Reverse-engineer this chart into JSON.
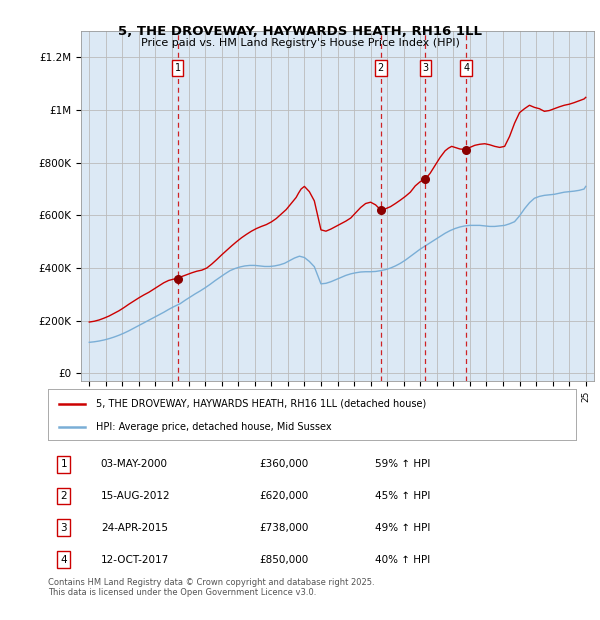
{
  "title": "5, THE DROVEWAY, HAYWARDS HEATH, RH16 1LL",
  "subtitle": "Price paid vs. HM Land Registry's House Price Index (HPI)",
  "red_label": "5, THE DROVEWAY, HAYWARDS HEATH, RH16 1LL (detached house)",
  "blue_label": "HPI: Average price, detached house, Mid Sussex",
  "transactions": [
    {
      "num": 1,
      "date": "03-MAY-2000",
      "price": 360000,
      "pct": "59%",
      "date_x": 2000.34
    },
    {
      "num": 2,
      "date": "15-AUG-2012",
      "price": 620000,
      "pct": "45%",
      "date_x": 2012.62
    },
    {
      "num": 3,
      "date": "24-APR-2015",
      "price": 738000,
      "pct": "49%",
      "date_x": 2015.31
    },
    {
      "num": 4,
      "date": "12-OCT-2017",
      "price": 850000,
      "pct": "40%",
      "date_x": 2017.78
    }
  ],
  "ylabel_ticks": [
    0,
    200000,
    400000,
    600000,
    800000,
    1000000,
    1200000
  ],
  "ylabel_labels": [
    "£0",
    "£200K",
    "£400K",
    "£600K",
    "£800K",
    "£1M",
    "£1.2M"
  ],
  "xlim": [
    1994.5,
    2025.5
  ],
  "ylim": [
    -30000,
    1300000
  ],
  "background_color": "#dce9f5",
  "plot_bg": "#ffffff",
  "red_color": "#cc0000",
  "blue_color": "#7aaed6",
  "grid_color": "#bbbbbb",
  "footer": "Contains HM Land Registry data © Crown copyright and database right 2025.\nThis data is licensed under the Open Government Licence v3.0.",
  "title_fontsize": 9.5,
  "subtitle_fontsize": 8.5,
  "red_years": [
    1995.0,
    1995.3,
    1995.6,
    1995.9,
    1996.2,
    1996.5,
    1996.8,
    1997.1,
    1997.4,
    1997.7,
    1998.0,
    1998.3,
    1998.6,
    1998.9,
    1999.2,
    1999.5,
    1999.8,
    2000.1,
    2000.34,
    2000.6,
    2000.9,
    2001.2,
    2001.5,
    2001.8,
    2002.1,
    2002.4,
    2002.7,
    2003.0,
    2003.3,
    2003.6,
    2003.9,
    2004.2,
    2004.5,
    2004.8,
    2005.1,
    2005.4,
    2005.7,
    2006.0,
    2006.3,
    2006.6,
    2006.9,
    2007.2,
    2007.5,
    2007.65,
    2007.8,
    2008.0,
    2008.3,
    2008.6,
    2009.0,
    2009.3,
    2009.6,
    2009.9,
    2010.2,
    2010.5,
    2010.8,
    2011.1,
    2011.4,
    2011.7,
    2012.0,
    2012.3,
    2012.62,
    2012.9,
    2013.2,
    2013.5,
    2013.8,
    2014.1,
    2014.4,
    2014.7,
    2015.0,
    2015.31,
    2015.6,
    2015.9,
    2016.2,
    2016.5,
    2016.7,
    2016.9,
    2017.1,
    2017.4,
    2017.78,
    2018.0,
    2018.3,
    2018.6,
    2018.9,
    2019.2,
    2019.5,
    2019.8,
    2020.1,
    2020.4,
    2020.7,
    2021.0,
    2021.3,
    2021.6,
    2021.9,
    2022.2,
    2022.5,
    2022.8,
    2023.1,
    2023.4,
    2023.7,
    2024.0,
    2024.3,
    2024.6,
    2024.9,
    2025.0
  ],
  "red_vals": [
    195000,
    198000,
    203000,
    210000,
    218000,
    228000,
    238000,
    250000,
    263000,
    275000,
    287000,
    298000,
    308000,
    320000,
    332000,
    344000,
    353000,
    358000,
    360000,
    368000,
    375000,
    382000,
    388000,
    392000,
    400000,
    415000,
    432000,
    450000,
    467000,
    484000,
    500000,
    515000,
    528000,
    540000,
    550000,
    558000,
    565000,
    575000,
    588000,
    605000,
    622000,
    645000,
    668000,
    685000,
    700000,
    710000,
    690000,
    655000,
    545000,
    540000,
    548000,
    558000,
    568000,
    578000,
    590000,
    610000,
    630000,
    645000,
    650000,
    640000,
    620000,
    625000,
    633000,
    645000,
    658000,
    672000,
    688000,
    712000,
    728000,
    738000,
    760000,
    790000,
    820000,
    845000,
    855000,
    862000,
    858000,
    852000,
    850000,
    858000,
    866000,
    870000,
    872000,
    868000,
    862000,
    858000,
    862000,
    900000,
    950000,
    990000,
    1005000,
    1018000,
    1010000,
    1005000,
    995000,
    998000,
    1005000,
    1012000,
    1018000,
    1022000,
    1028000,
    1035000,
    1042000,
    1048000
  ],
  "blue_years": [
    1995.0,
    1995.3,
    1995.6,
    1995.9,
    1996.2,
    1996.5,
    1996.8,
    1997.1,
    1997.4,
    1997.7,
    1998.0,
    1998.3,
    1998.6,
    1998.9,
    1999.2,
    1999.5,
    1999.8,
    2000.1,
    2000.5,
    2000.8,
    2001.1,
    2001.4,
    2001.7,
    2002.0,
    2002.3,
    2002.6,
    2002.9,
    2003.2,
    2003.5,
    2003.8,
    2004.1,
    2004.4,
    2004.7,
    2005.0,
    2005.3,
    2005.6,
    2005.9,
    2006.2,
    2006.5,
    2006.8,
    2007.1,
    2007.4,
    2007.7,
    2008.0,
    2008.3,
    2008.6,
    2009.0,
    2009.3,
    2009.6,
    2009.9,
    2010.2,
    2010.5,
    2010.8,
    2011.1,
    2011.4,
    2011.7,
    2012.0,
    2012.3,
    2012.6,
    2012.9,
    2013.2,
    2013.5,
    2013.8,
    2014.1,
    2014.4,
    2014.7,
    2015.0,
    2015.3,
    2015.6,
    2015.9,
    2016.2,
    2016.5,
    2016.8,
    2017.1,
    2017.4,
    2017.7,
    2018.0,
    2018.3,
    2018.6,
    2018.9,
    2019.2,
    2019.5,
    2019.8,
    2020.1,
    2020.4,
    2020.7,
    2021.0,
    2021.3,
    2021.6,
    2021.9,
    2022.2,
    2022.5,
    2022.8,
    2023.1,
    2023.4,
    2023.7,
    2024.0,
    2024.3,
    2024.6,
    2024.9,
    2025.0
  ],
  "blue_vals": [
    118000,
    120000,
    123000,
    127000,
    132000,
    138000,
    145000,
    153000,
    162000,
    172000,
    182000,
    192000,
    202000,
    212000,
    222000,
    232000,
    243000,
    253000,
    265000,
    278000,
    290000,
    302000,
    313000,
    325000,
    338000,
    352000,
    365000,
    378000,
    390000,
    398000,
    404000,
    408000,
    410000,
    410000,
    408000,
    406000,
    406000,
    408000,
    412000,
    418000,
    428000,
    438000,
    445000,
    440000,
    425000,
    405000,
    340000,
    342000,
    348000,
    356000,
    364000,
    372000,
    378000,
    382000,
    385000,
    386000,
    386000,
    387000,
    390000,
    394000,
    400000,
    408000,
    418000,
    430000,
    444000,
    458000,
    472000,
    484000,
    496000,
    508000,
    520000,
    532000,
    542000,
    550000,
    556000,
    560000,
    562000,
    562000,
    562000,
    560000,
    558000,
    558000,
    560000,
    562000,
    568000,
    576000,
    598000,
    625000,
    648000,
    665000,
    672000,
    676000,
    678000,
    680000,
    684000,
    688000,
    690000,
    692000,
    695000,
    700000,
    710000
  ]
}
